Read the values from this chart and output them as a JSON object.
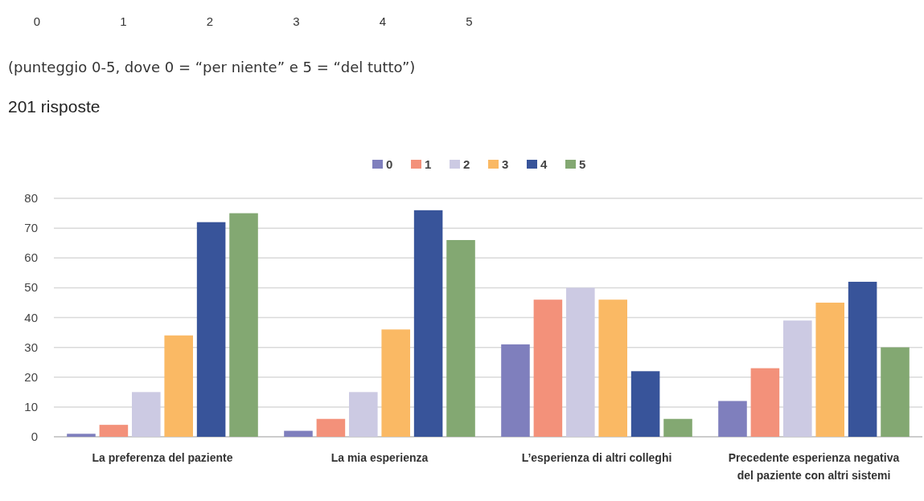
{
  "chart_data": {
    "type": "bar",
    "subtitle": "201 risposte",
    "annotations": [
      "0",
      "1",
      "2",
      "3",
      "4",
      "5",
      "(punteggio 0-5, dove 0 = “per niente” e 5 = “del tutto”)"
    ],
    "categories": [
      "La preferenza del paziente",
      "La mia esperienza",
      "L’esperienza di altri colleghi",
      "Precedente esperienza negativa del paziente con altri sistemi"
    ],
    "series": [
      {
        "name": "0",
        "color": "#7f7fbd",
        "values": [
          1,
          2,
          31,
          12
        ]
      },
      {
        "name": "1",
        "color": "#f3917a",
        "values": [
          4,
          6,
          46,
          23
        ]
      },
      {
        "name": "2",
        "color": "#cccae3",
        "values": [
          15,
          15,
          50,
          39
        ]
      },
      {
        "name": "3",
        "color": "#fab964",
        "values": [
          34,
          36,
          46,
          45
        ]
      },
      {
        "name": "4",
        "color": "#38549a",
        "values": [
          72,
          76,
          22,
          52
        ]
      },
      {
        "name": "5",
        "color": "#83a872",
        "values": [
          75,
          66,
          6,
          30
        ]
      }
    ],
    "ylim": [
      0,
      80
    ],
    "yticks": [
      0,
      10,
      20,
      30,
      40,
      50,
      60,
      70,
      80
    ],
    "grid": "y",
    "legend": "top"
  }
}
